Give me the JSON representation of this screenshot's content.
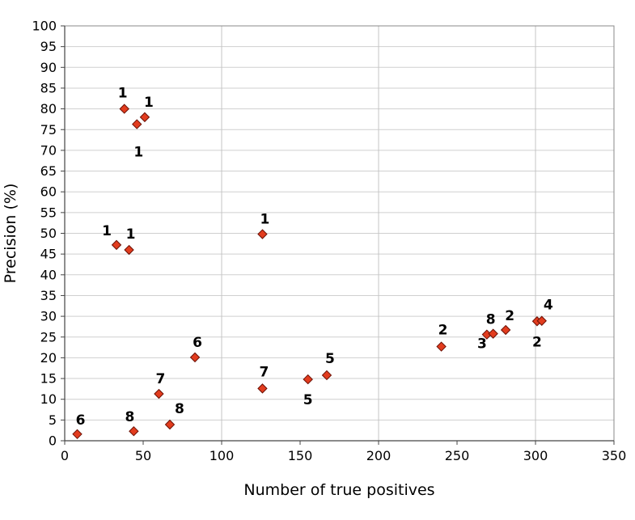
{
  "chart_data": {
    "type": "scatter",
    "xlabel": "Number of true positives",
    "ylabel": "Precision (%)",
    "xlim": [
      0,
      350
    ],
    "ylim": [
      0,
      100
    ],
    "x_ticks": [
      0,
      50,
      100,
      150,
      200,
      250,
      300,
      350
    ],
    "y_ticks": [
      0,
      5,
      10,
      15,
      20,
      25,
      30,
      35,
      40,
      45,
      50,
      55,
      60,
      65,
      70,
      75,
      80,
      85,
      90,
      95,
      100
    ],
    "grid": "horizontal every 5, vertical major every 100",
    "legend": "none",
    "marker_color": "#e23c1e",
    "points": [
      {
        "x": 38,
        "y": 80,
        "label": "1"
      },
      {
        "x": 51,
        "y": 78,
        "label": "1"
      },
      {
        "x": 46,
        "y": 76.3,
        "label": "1"
      },
      {
        "x": 33,
        "y": 47.2,
        "label": "1"
      },
      {
        "x": 41,
        "y": 46,
        "label": "1"
      },
      {
        "x": 126,
        "y": 49.8,
        "label": "1"
      },
      {
        "x": 240,
        "y": 22.7,
        "label": "2"
      },
      {
        "x": 269,
        "y": 25.6,
        "label": "3"
      },
      {
        "x": 273,
        "y": 25.8,
        "label": "8"
      },
      {
        "x": 281,
        "y": 26.7,
        "label": "2"
      },
      {
        "x": 301,
        "y": 28.8,
        "label": "2"
      },
      {
        "x": 304,
        "y": 28.9,
        "label": "4"
      },
      {
        "x": 83,
        "y": 20.1,
        "label": "6"
      },
      {
        "x": 8,
        "y": 1.6,
        "label": "6"
      },
      {
        "x": 60,
        "y": 11.3,
        "label": "7"
      },
      {
        "x": 126,
        "y": 12.6,
        "label": "7"
      },
      {
        "x": 44,
        "y": 2.3,
        "label": "8"
      },
      {
        "x": 67,
        "y": 3.9,
        "label": "8"
      },
      {
        "x": 155,
        "y": 14.8,
        "label": "5"
      },
      {
        "x": 167,
        "y": 15.8,
        "label": "5"
      }
    ]
  }
}
